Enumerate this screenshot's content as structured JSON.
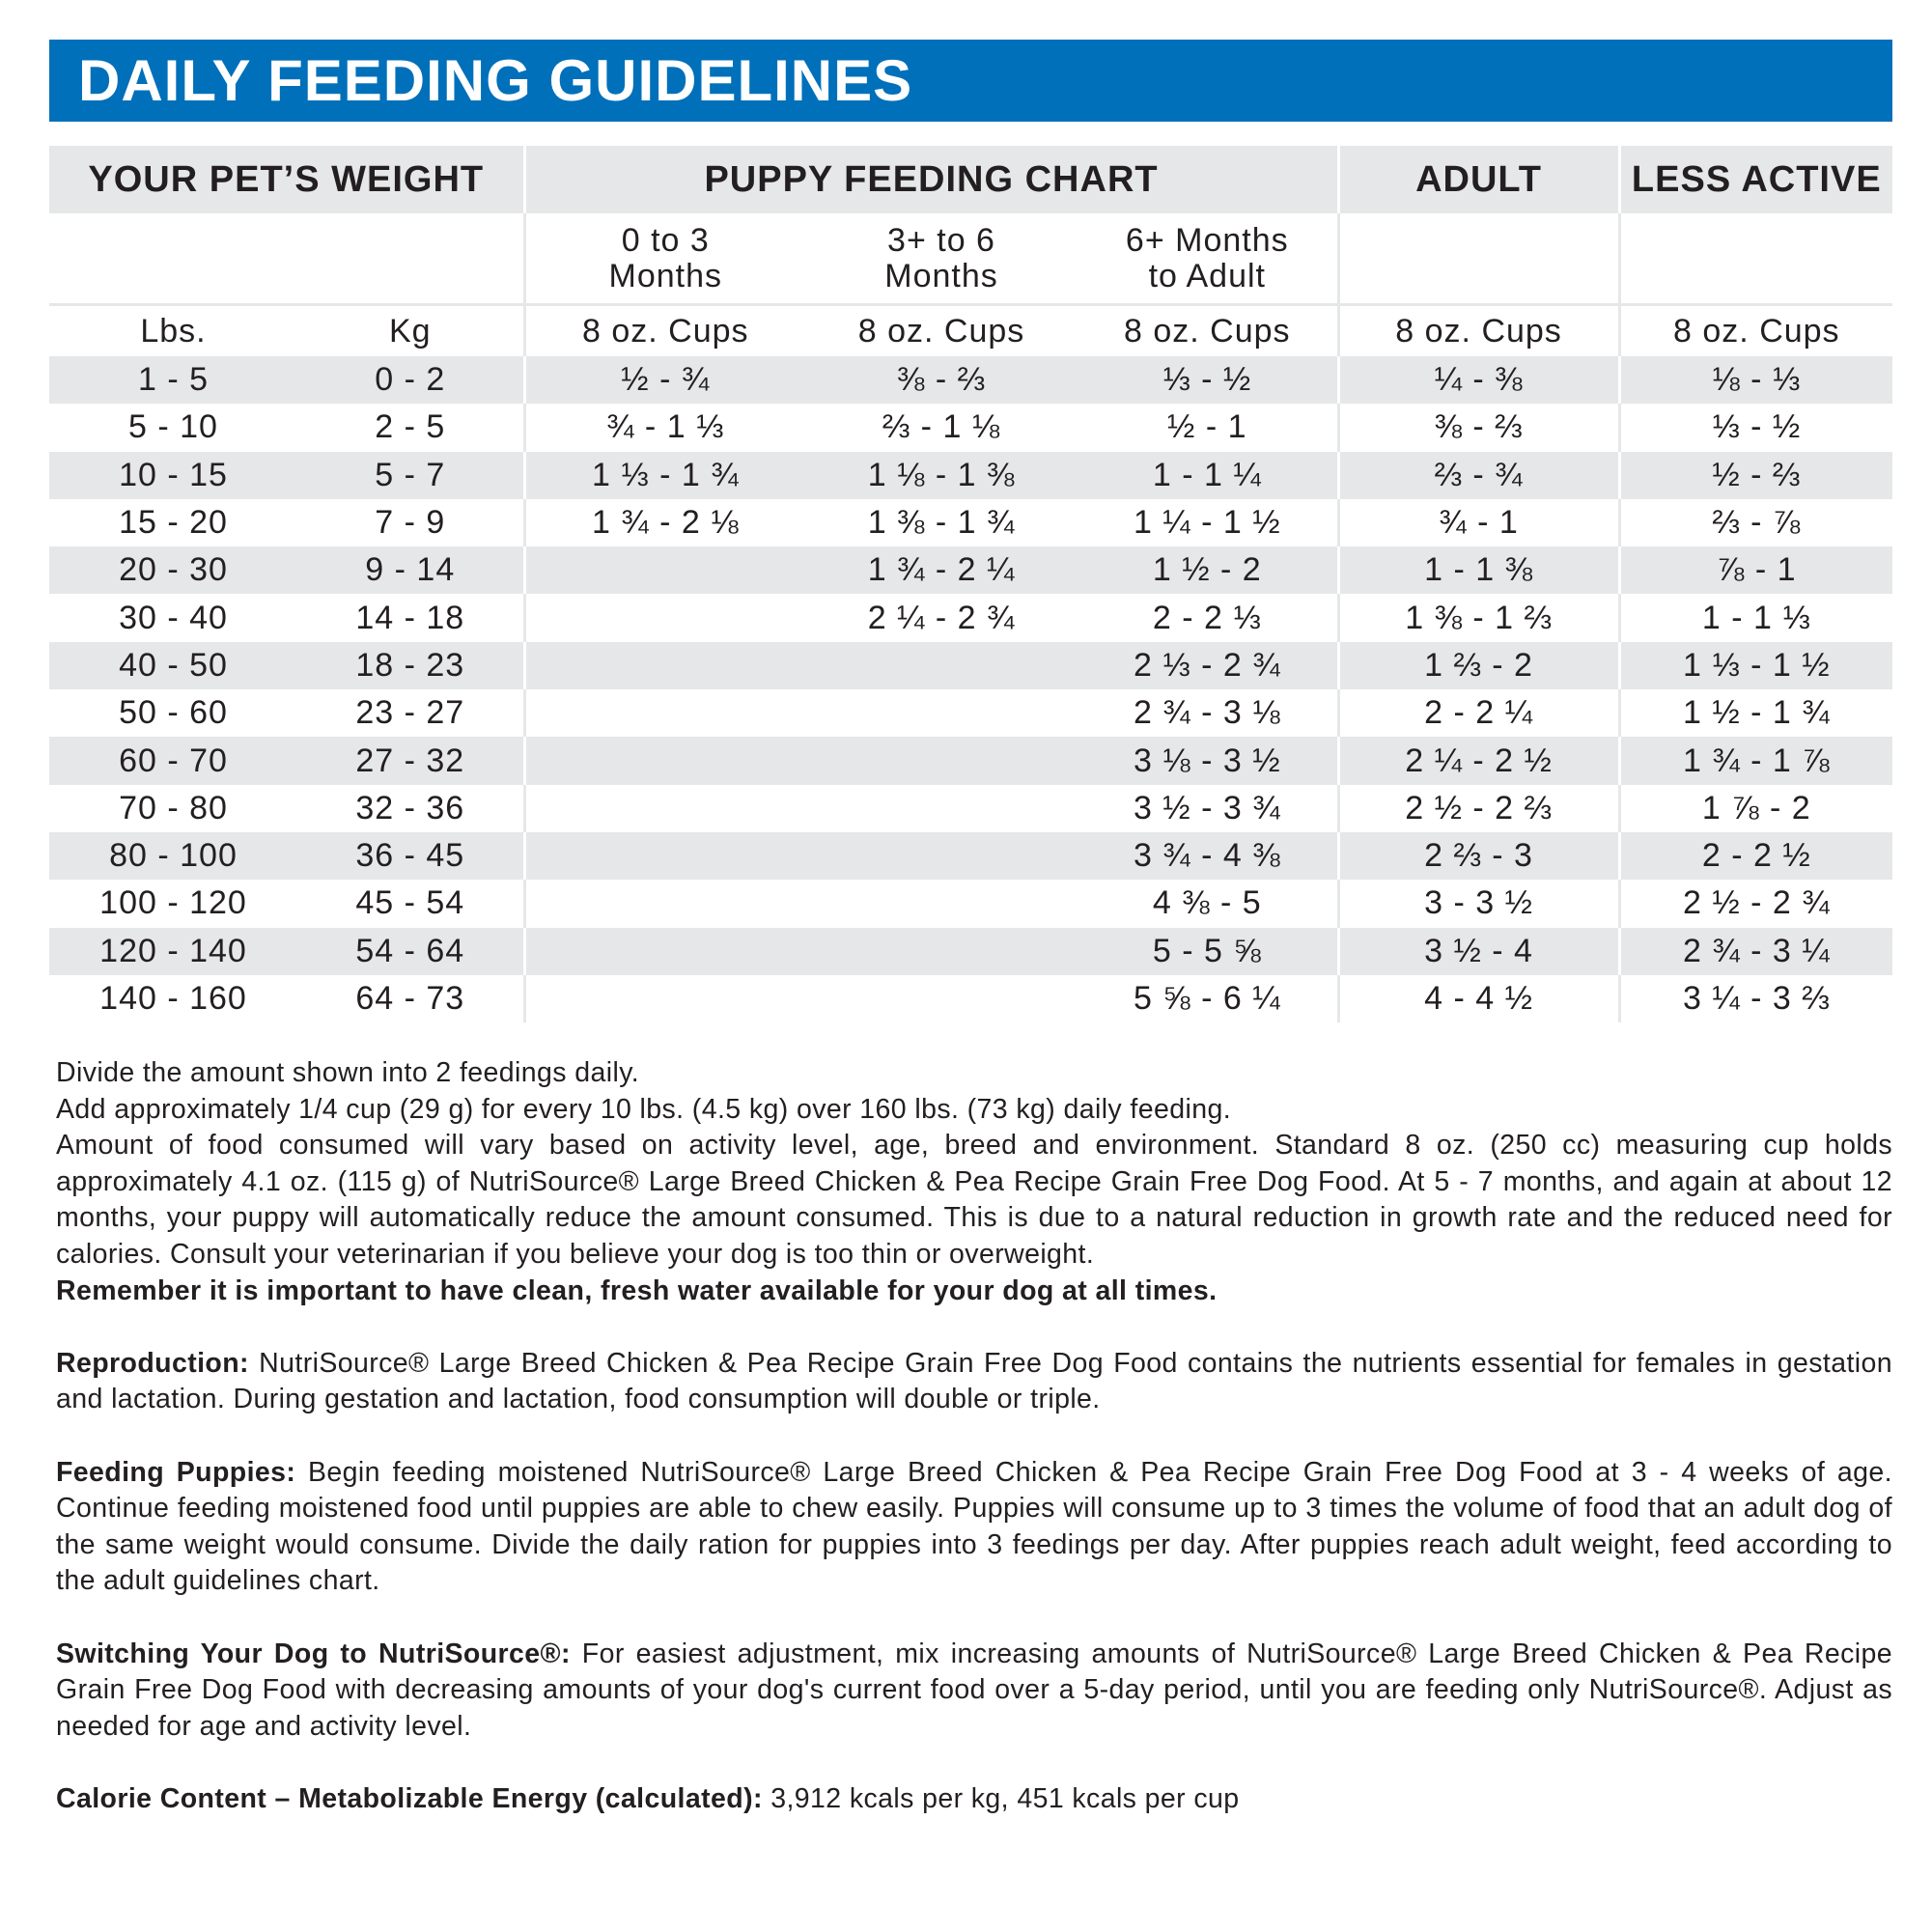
{
  "title": "DAILY FEEDING GUIDELINES",
  "table": {
    "header": [
      "YOUR PET’S WEIGHT",
      "PUPPY FEEDING CHART",
      "ADULT",
      "LESS ACTIVE"
    ],
    "subheader": [
      "0 to 3 Months",
      "3+ to 6 Months",
      "6+ Months to Adult"
    ],
    "units": [
      "Lbs.",
      "Kg",
      "8 oz. Cups",
      "8 oz. Cups",
      "8 oz. Cups",
      "8 oz. Cups",
      "8 oz. Cups"
    ],
    "rows": [
      [
        "1 - 5",
        "0 - 2",
        "½ - ¾",
        "⅜ - ⅔",
        "⅓ - ½",
        "¼ - ⅜",
        "⅛ - ⅓"
      ],
      [
        "5 - 10",
        "2 - 5",
        "¾ - 1 ⅓",
        "⅔ - 1 ⅛",
        "½ - 1",
        "⅜ - ⅔",
        "⅓ - ½"
      ],
      [
        "10 - 15",
        "5 - 7",
        "1 ⅓ - 1 ¾",
        "1 ⅛ - 1 ⅜",
        "1 - 1 ¼",
        "⅔ - ¾",
        "½ - ⅔"
      ],
      [
        "15 - 20",
        "7 - 9",
        "1 ¾ - 2 ⅛",
        "1 ⅜ - 1 ¾",
        "1 ¼ - 1 ½",
        "¾ - 1",
        "⅔ - ⅞"
      ],
      [
        "20 - 30",
        "9 - 14",
        null,
        "1 ¾ - 2 ¼",
        "1 ½ - 2",
        "1 - 1 ⅜",
        "⅞ - 1"
      ],
      [
        "30 - 40",
        "14 - 18",
        null,
        "2 ¼ - 2 ¾",
        "2 - 2 ⅓",
        "1 ⅜ - 1 ⅔",
        "1 - 1 ⅓"
      ],
      [
        "40 - 50",
        "18 - 23",
        null,
        null,
        "2 ⅓ - 2 ¾",
        "1 ⅔ - 2",
        "1 ⅓ - 1 ½"
      ],
      [
        "50 - 60",
        "23 - 27",
        null,
        null,
        "2 ¾ - 3 ⅛",
        "2 - 2 ¼",
        "1 ½ - 1 ¾"
      ],
      [
        "60 - 70",
        "27 - 32",
        null,
        null,
        "3 ⅛ - 3 ½",
        "2 ¼ - 2 ½",
        "1 ¾ - 1 ⅞"
      ],
      [
        "70 - 80",
        "32 - 36",
        null,
        null,
        "3 ½ - 3 ¾",
        "2 ½ - 2 ⅔",
        "1 ⅞ - 2"
      ],
      [
        "80 - 100",
        "36 - 45",
        null,
        null,
        "3 ¾ - 4 ⅜",
        "2 ⅔ - 3",
        "2 - 2 ½"
      ],
      [
        "100 - 120",
        "45 - 54",
        null,
        null,
        "4 ⅜ - 5",
        "3 - 3 ½",
        "2 ½ - 2 ¾"
      ],
      [
        "120 - 140",
        "54 - 64",
        null,
        null,
        "5 - 5 ⅝",
        "3 ½ - 4",
        "2 ¾ - 3 ¼"
      ],
      [
        "140 - 160",
        "64 - 73",
        null,
        null,
        "5 ⅝ - 6 ¼",
        "4 - 4 ½",
        "3 ¼ - 3 ⅔"
      ]
    ]
  },
  "notes": {
    "lines": [
      "Divide the amount shown into 2 feedings daily.",
      "Add approximately 1/4 cup (29 g) for every 10 lbs. (4.5 kg) over 160 lbs. (73 kg) daily feeding.",
      "Amount of food consumed will vary based on activity level, age, breed and environment. Standard 8 oz. (250 cc) measuring cup holds approximately 4.1 oz. (115 g) of NutriSource® Large Breed Chicken & Pea Recipe Grain Free Dog Food. At 5 - 7 months, and again at about 12 months, your puppy will automatically reduce the amount consumed. This is due to a natural reduction in growth rate and the reduced need for calories. Consult your veterinarian if you believe your dog is too thin or overweight."
    ],
    "bold_line": "Remember it is important to have clean, fresh water available for your dog at all times."
  },
  "sections": [
    {
      "lead": "Reproduction:",
      "text": "NutriSource® Large Breed Chicken & Pea Recipe Grain Free Dog Food contains the nutrients essential for females in gestation and lactation. During gestation and lactation, food consumption will double or triple."
    },
    {
      "lead": "Feeding Puppies:",
      "text": "Begin feeding moistened NutriSource® Large Breed Chicken & Pea Recipe Grain Free Dog Food at 3 - 4 weeks of age. Continue feeding moistened food until puppies are able to chew easily. Puppies will consume up to 3 times the volume of food that an adult dog of the same weight would consume. Divide the daily ration for puppies into 3 feedings per day. After puppies reach adult weight, feed according to the adult guidelines chart."
    },
    {
      "lead": "Switching Your Dog to NutriSource®:",
      "text": "For easiest adjustment, mix increasing amounts of NutriSource® Large Breed Chicken & Pea Recipe Grain Free Dog Food with decreasing amounts of your dog's current food over a 5-day period, until you are feeding only NutriSource®. Adjust as needed for age and activity level."
    },
    {
      "lead": "Calorie Content – Metabolizable Energy (calculated):",
      "text": "3,912 kcals per kg, 451 kcals per cup"
    }
  ]
}
